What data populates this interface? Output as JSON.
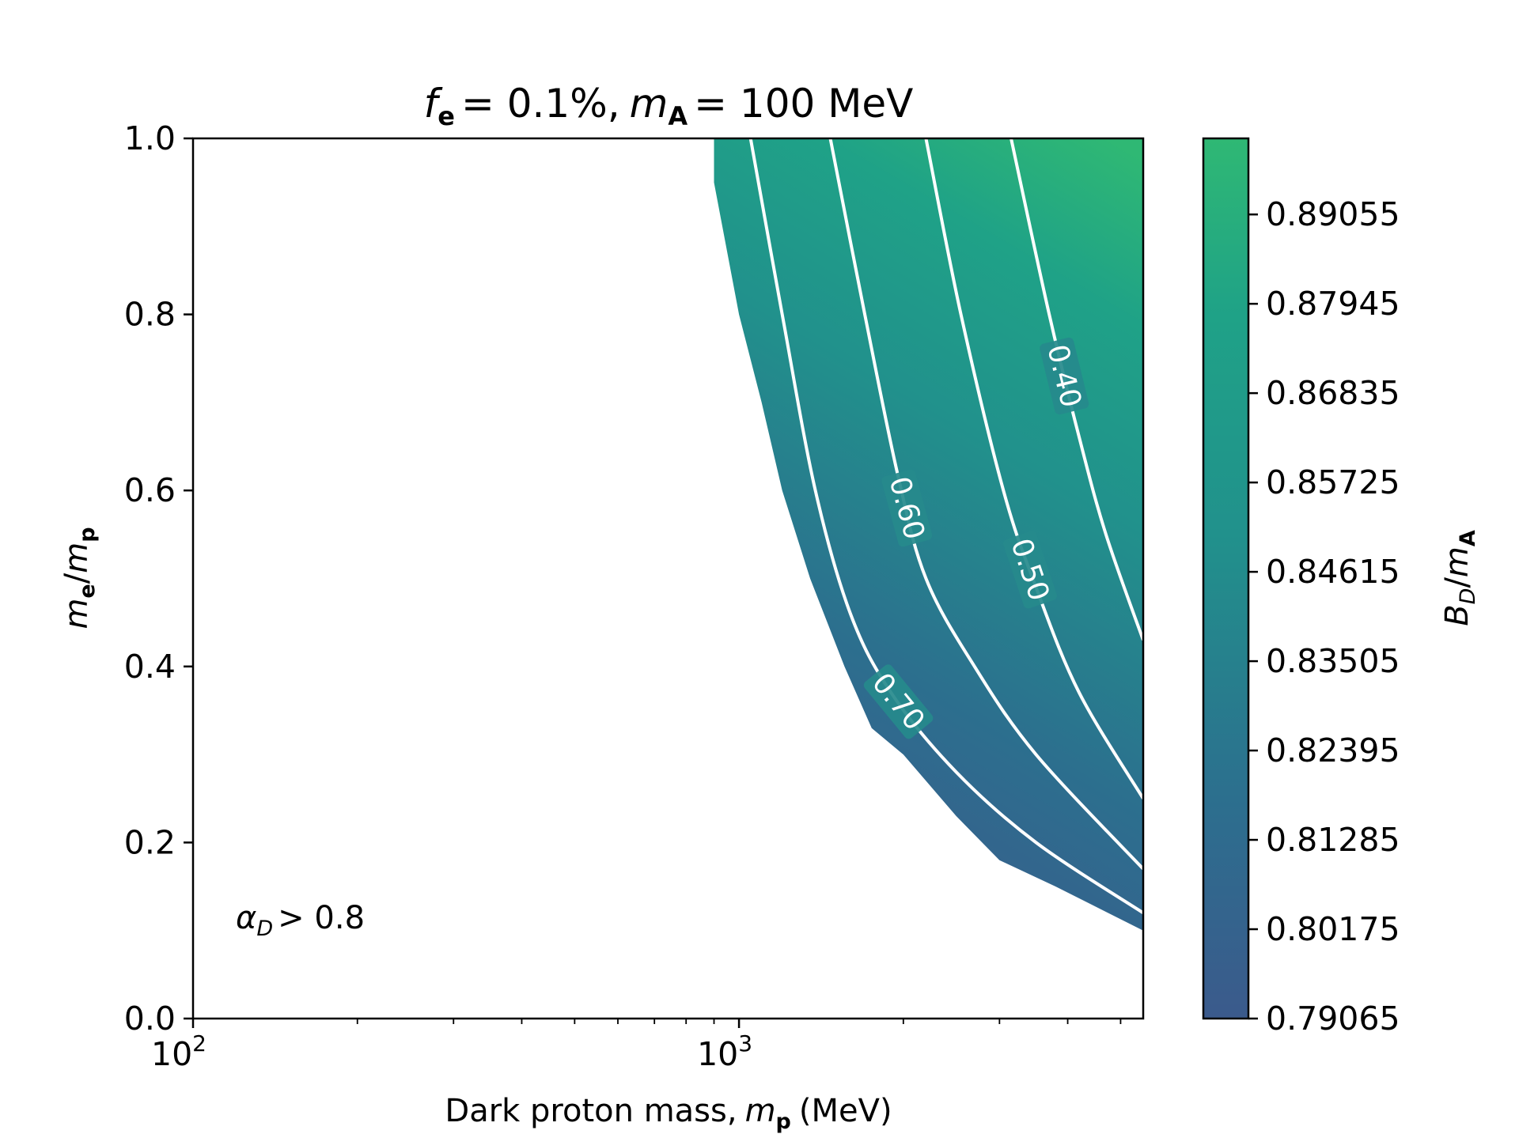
{
  "chart_data": {
    "type": "contourf",
    "title": {
      "f_symbol": "f",
      "f_sub": "e",
      "f_value": "= 0.1%,",
      "m_symbol": "m",
      "m_sub": "A",
      "m_value": "= 100 MeV"
    },
    "xlabel": {
      "text": "Dark proton mass,",
      "symbol": "m",
      "sub": "p",
      "unit": "(MeV)"
    },
    "ylabel": {
      "symbol_top": "m",
      "sub_top": "e",
      "slash": "/",
      "symbol_bottom": "m",
      "sub_bottom": "p"
    },
    "xscale": "log",
    "xlim": [
      100,
      5500
    ],
    "ylim": [
      0.0,
      1.0
    ],
    "x_major_ticks": [
      {
        "value": 100,
        "base": "10",
        "exp": "2"
      },
      {
        "value": 1000,
        "base": "10",
        "exp": "3"
      }
    ],
    "x_minor_ticks": [
      200,
      300,
      400,
      500,
      600,
      700,
      800,
      900,
      2000,
      3000,
      4000,
      5000
    ],
    "y_ticks": [
      "0.0",
      "0.2",
      "0.4",
      "0.6",
      "0.8",
      "1.0"
    ],
    "colorbar": {
      "label_symbol": "B",
      "label_sub": "D",
      "label_slash": "/",
      "label_symbol2": "m",
      "label_sub2": "A",
      "ticks": [
        "0.79065",
        "0.80175",
        "0.81285",
        "0.82395",
        "0.83505",
        "0.84615",
        "0.85725",
        "0.86835",
        "0.87945",
        "0.89055"
      ],
      "range": [
        0.79065,
        0.9
      ],
      "colors": [
        "#3b5a8c",
        "#2c6f8e",
        "#21918c",
        "#1fa287",
        "#2fb874"
      ]
    },
    "excluded_region_label": {
      "symbol": "α",
      "sub": "D",
      "text": "> 0.8"
    },
    "filled_region_boundary": [
      [
        900,
        1.0
      ],
      [
        900,
        0.95
      ],
      [
        1000,
        0.8
      ],
      [
        1100,
        0.7
      ],
      [
        1200,
        0.6
      ],
      [
        1350,
        0.5
      ],
      [
        1560,
        0.4
      ],
      [
        1750,
        0.33
      ],
      [
        2000,
        0.3
      ],
      [
        2500,
        0.23
      ],
      [
        3000,
        0.18
      ],
      [
        3800,
        0.15
      ],
      [
        5500,
        0.1
      ]
    ],
    "contours": [
      {
        "level": "0.70",
        "label": "0.70",
        "points": [
          [
            1050,
            1.0
          ],
          [
            1200,
            0.8
          ],
          [
            1380,
            0.6
          ],
          [
            1600,
            0.46
          ],
          [
            1900,
            0.37
          ],
          [
            2500,
            0.28
          ],
          [
            3500,
            0.2
          ],
          [
            5500,
            0.12
          ]
        ]
      },
      {
        "level": "0.60",
        "label": "0.60",
        "points": [
          [
            1470,
            1.0
          ],
          [
            1700,
            0.8
          ],
          [
            1950,
            0.62
          ],
          [
            2200,
            0.5
          ],
          [
            2700,
            0.4
          ],
          [
            3500,
            0.3
          ],
          [
            5500,
            0.17
          ]
        ]
      },
      {
        "level": "0.50",
        "label": "0.50",
        "points": [
          [
            2200,
            1.0
          ],
          [
            2550,
            0.8
          ],
          [
            3050,
            0.6
          ],
          [
            3500,
            0.49
          ],
          [
            4200,
            0.37
          ],
          [
            5500,
            0.25
          ]
        ]
      },
      {
        "level": "0.40",
        "label": "0.40",
        "points": [
          [
            3150,
            1.0
          ],
          [
            3700,
            0.8
          ],
          [
            4200,
            0.66
          ],
          [
            4700,
            0.55
          ],
          [
            5500,
            0.43
          ]
        ]
      }
    ]
  }
}
